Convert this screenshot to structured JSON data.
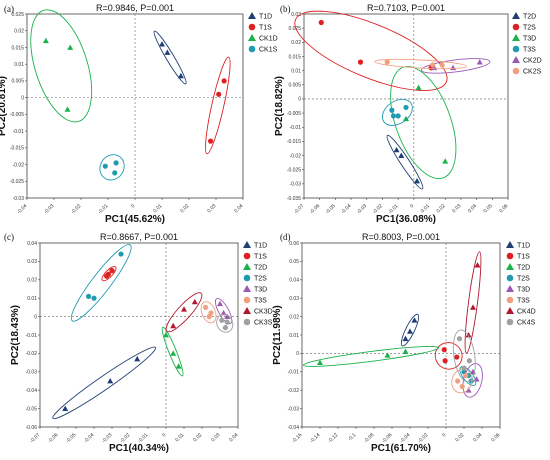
{
  "colors": {
    "T1D": "#1f3f73",
    "T1S": "#e02020",
    "CK1D": "#1bb24b",
    "CK1S": "#1f9bb0",
    "T2D": "#1f3f73",
    "T2S": "#e02020",
    "T3D": "#1bb24b",
    "T3S": "#1f9bb0",
    "CK2D": "#9b59b6",
    "CK2S": "#f0a080",
    "c_T1D": "#1f3f73",
    "c_T1S": "#e02020",
    "c_T2D": "#1bb24b",
    "c_T2S": "#1f9bb0",
    "c_T3D": "#9b59b6",
    "c_T3S": "#f0a080",
    "c_CK3D": "#b01830",
    "c_CK3S": "#a0a0a0"
  },
  "chart_data": [
    {
      "panel": "(a)",
      "type": "scatter",
      "stat": "R=0.9846, P=0.001",
      "xlabel": "PC1(45.62%)",
      "ylabel": "PC2(20.81%)",
      "xlim": [
        -0.04,
        0.04
      ],
      "ylim": [
        -0.03,
        0.025
      ],
      "xticks": [
        "-0.04",
        "-0.03",
        "-0.02",
        "-0.01",
        "0",
        "0.01",
        "0.02",
        "0.03",
        "0.04"
      ],
      "yticks": [
        "0.025",
        "0.02",
        "0.015",
        "0.01",
        "0.005",
        "0",
        "-0.005",
        "-0.01",
        "-0.015",
        "-0.02",
        "-0.025",
        "-0.03"
      ],
      "series": [
        {
          "name": "T1D",
          "marker": "triangle",
          "color": "#1f3f73",
          "points": [
            [
              0.01,
              0.016
            ],
            [
              0.012,
              0.0135
            ],
            [
              0.017,
              0.0065
            ]
          ]
        },
        {
          "name": "T1S",
          "marker": "circle",
          "color": "#e02020",
          "points": [
            [
              0.033,
              0.005
            ],
            [
              0.031,
              0.001
            ],
            [
              0.028,
              -0.013
            ]
          ]
        },
        {
          "name": "CK1D",
          "marker": "triangle",
          "color": "#1bb24b",
          "points": [
            [
              -0.033,
              0.017
            ],
            [
              -0.024,
              0.015
            ],
            [
              -0.025,
              -0.0035
            ]
          ]
        },
        {
          "name": "CK1S",
          "marker": "circle",
          "color": "#1f9bb0",
          "points": [
            [
              -0.011,
              -0.0205
            ],
            [
              -0.007,
              -0.0195
            ],
            [
              -0.0075,
              -0.0225
            ]
          ]
        }
      ]
    },
    {
      "panel": "(b)",
      "type": "scatter",
      "stat": "R=0.7103, P=0.001",
      "xlabel": "PC1(36.08%)",
      "ylabel": "PC2(18.82%)",
      "xlim": [
        -0.07,
        0.06
      ],
      "ylim": [
        -0.035,
        0.03
      ],
      "xticks": [
        "-0.07",
        "-0.06",
        "-0.05",
        "-0.04",
        "-0.03",
        "-0.02",
        "-0.01",
        "0",
        "0.01",
        "0.02",
        "0.03",
        "0.04",
        "0.05",
        "0.06"
      ],
      "yticks": [
        "0.03",
        "0.025",
        "0.02",
        "0.015",
        "0.01",
        "0.005",
        "0",
        "-0.005",
        "-0.01",
        "-0.015",
        "-0.02",
        "-0.025",
        "-0.03",
        "-0.035"
      ],
      "series": [
        {
          "name": "T2D",
          "marker": "triangle",
          "color": "#1f3f73",
          "points": [
            [
              -0.011,
              -0.018
            ],
            [
              -0.008,
              -0.02
            ],
            [
              0.002,
              -0.029
            ]
          ]
        },
        {
          "name": "T2S",
          "marker": "circle",
          "color": "#e02020",
          "points": [
            [
              -0.059,
              0.027
            ],
            [
              -0.034,
              0.013
            ],
            [
              0.011,
              0.011
            ]
          ]
        },
        {
          "name": "T3D",
          "marker": "triangle",
          "color": "#1bb24b",
          "points": [
            [
              -0.005,
              -0.007
            ],
            [
              0.003,
              0.004
            ],
            [
              0.02,
              -0.022
            ]
          ]
        },
        {
          "name": "T3S",
          "marker": "circle",
          "color": "#1f9bb0",
          "points": [
            [
              -0.014,
              -0.004
            ],
            [
              -0.01,
              -0.006
            ],
            [
              -0.005,
              -0.003
            ],
            [
              -0.013,
              -0.006
            ]
          ]
        },
        {
          "name": "CK2D",
          "marker": "triangle",
          "color": "#9b59b6",
          "points": [
            [
              0.013,
              0.011
            ],
            [
              0.025,
              0.011
            ],
            [
              0.042,
              0.013
            ]
          ]
        },
        {
          "name": "CK2S",
          "marker": "circle",
          "color": "#f0a080",
          "points": [
            [
              -0.017,
              0.013
            ],
            [
              0.012,
              0.012
            ],
            [
              0.018,
              0.012
            ]
          ]
        }
      ]
    },
    {
      "panel": "(c)",
      "type": "scatter",
      "stat": "R=0.8667, P=0.001",
      "xlabel": "PC1(40.34%)",
      "ylabel": "PC2(18.43%)",
      "xlim": [
        -0.07,
        0.04
      ],
      "ylim": [
        -0.06,
        0.04
      ],
      "xticks": [
        "-0.07",
        "-0.06",
        "-0.05",
        "-0.04",
        "-0.03",
        "-0.02",
        "-0.01",
        "0",
        "0.01",
        "0.02",
        "0.03",
        "0.04"
      ],
      "yticks": [
        "0.04",
        "0.03",
        "0.02",
        "0.01",
        "0",
        "-0.01",
        "-0.02",
        "-0.03",
        "-0.04",
        "-0.05",
        "-0.06"
      ],
      "series": [
        {
          "name": "T1D",
          "marker": "triangle",
          "color": "#1f3f73",
          "points": [
            [
              -0.056,
              -0.05
            ],
            [
              -0.031,
              -0.035
            ],
            [
              -0.016,
              -0.023
            ]
          ]
        },
        {
          "name": "T1S",
          "marker": "circle",
          "color": "#e02020",
          "points": [
            [
              -0.033,
              0.022
            ],
            [
              -0.032,
              0.023
            ],
            [
              -0.03,
              0.025
            ]
          ]
        },
        {
          "name": "T2D",
          "marker": "triangle",
          "color": "#1bb24b",
          "points": [
            [
              0,
              -0.01
            ],
            [
              0.004,
              -0.02
            ],
            [
              0.007,
              -0.027
            ]
          ]
        },
        {
          "name": "T2S",
          "marker": "circle",
          "color": "#1f9bb0",
          "points": [
            [
              -0.043,
              0.011
            ],
            [
              -0.04,
              0.01
            ],
            [
              -0.025,
              0.034
            ]
          ]
        },
        {
          "name": "T3D",
          "marker": "triangle",
          "color": "#9b59b6",
          "points": [
            [
              0.03,
              0.007
            ],
            [
              0.032,
              0.002
            ],
            [
              0.034,
              0.0
            ]
          ]
        },
        {
          "name": "T3S",
          "marker": "circle",
          "color": "#f0a080",
          "points": [
            [
              0.022,
              0.005
            ],
            [
              0.024,
              0.0
            ],
            [
              0.025,
              0.002
            ]
          ]
        },
        {
          "name": "CK3D",
          "marker": "triangle",
          "color": "#b01830",
          "points": [
            [
              0.004,
              -0.005
            ],
            [
              0.01,
              0.004
            ],
            [
              0.016,
              0.008
            ]
          ]
        },
        {
          "name": "CK3S",
          "marker": "circle",
          "color": "#a0a0a0",
          "points": [
            [
              0.031,
              -0.002
            ],
            [
              0.033,
              -0.006
            ],
            [
              0.034,
              -0.003
            ]
          ]
        }
      ]
    },
    {
      "panel": "(d)",
      "type": "scatter",
      "stat": "R=0.8003, P=0.001",
      "xlabel": "PC1(61.70%)",
      "ylabel": "PC2(11.98%)",
      "xlim": [
        -0.16,
        0.06
      ],
      "ylim": [
        -0.04,
        0.06
      ],
      "xticks": [
        "-0.16",
        "-0.14",
        "-0.12",
        "-0.1",
        "-0.08",
        "-0.06",
        "-0.04",
        "-0.02",
        "0",
        "0.02",
        "0.04",
        "0.06"
      ],
      "yticks": [
        "0.06",
        "0.05",
        "0.04",
        "0.03",
        "0.02",
        "0.01",
        "0",
        "-0.01",
        "-0.02",
        "-0.03",
        "-0.04"
      ],
      "series": [
        {
          "name": "T1D",
          "marker": "triangle",
          "color": "#1f3f73",
          "points": [
            [
              -0.045,
              0.008
            ],
            [
              -0.04,
              0.012
            ],
            [
              -0.035,
              0.018
            ]
          ]
        },
        {
          "name": "T1S",
          "marker": "circle",
          "color": "#e02020",
          "points": [
            [
              -0.002,
              0.002
            ],
            [
              -0.001,
              -0.004
            ],
            [
              0.012,
              -0.002
            ]
          ]
        },
        {
          "name": "T2D",
          "marker": "triangle",
          "color": "#1bb24b",
          "points": [
            [
              -0.14,
              -0.005
            ],
            [
              -0.065,
              -0.001
            ],
            [
              -0.045,
              0.001
            ]
          ]
        },
        {
          "name": "T2S",
          "marker": "circle",
          "color": "#1f9bb0",
          "points": [
            [
              0.02,
              -0.01
            ],
            [
              0.025,
              -0.012
            ],
            [
              0.028,
              -0.015
            ]
          ]
        },
        {
          "name": "T3D",
          "marker": "triangle",
          "color": "#9b59b6",
          "points": [
            [
              0.03,
              -0.01
            ],
            [
              0.034,
              -0.014
            ],
            [
              0.025,
              -0.02
            ]
          ]
        },
        {
          "name": "T3S",
          "marker": "circle",
          "color": "#f0a080",
          "points": [
            [
              0.013,
              -0.015
            ],
            [
              0.018,
              -0.018
            ],
            [
              0.022,
              -0.012
            ]
          ]
        },
        {
          "name": "CK4D",
          "marker": "triangle",
          "color": "#b01830",
          "points": [
            [
              0.025,
              0.01
            ],
            [
              0.03,
              0.025
            ],
            [
              0.035,
              0.048
            ]
          ]
        },
        {
          "name": "CK4S",
          "marker": "circle",
          "color": "#a0a0a0",
          "points": [
            [
              0.015,
              0.008
            ],
            [
              0.02,
              -0.008
            ],
            [
              0.026,
              -0.004
            ]
          ]
        }
      ]
    }
  ]
}
